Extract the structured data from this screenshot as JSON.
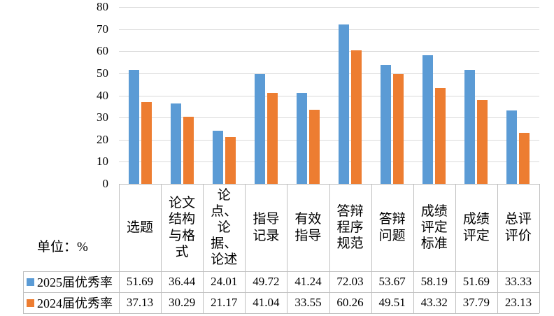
{
  "unit_label": "单位：%",
  "chart_data": {
    "type": "bar",
    "title": "",
    "xlabel": "",
    "ylabel": "单位：%",
    "categories": [
      "选题",
      "论文结构与格式",
      "论点、论据、论述",
      "指导记录",
      "有效指导",
      "答辩程序规范",
      "答辩问题",
      "成绩评定标准",
      "成绩评定",
      "总评评价"
    ],
    "category_label_lines": [
      "选题",
      "论文\n结构\n与格\n式",
      "论\n点、\n论\n据、\n论述",
      "指导\n记录",
      "有效\n指导",
      "答辩\n程序\n规范",
      "答辩\n问题",
      "成绩\n评定\n标准",
      "成绩\n评定",
      "总评\n评价"
    ],
    "series": [
      {
        "name": "2025届优秀率",
        "color": "#5B9BD5",
        "values": [
          51.69,
          36.44,
          24.01,
          49.72,
          41.24,
          72.03,
          53.67,
          58.19,
          51.69,
          33.33
        ]
      },
      {
        "name": "2024届优秀率",
        "color": "#ED7D31",
        "values": [
          37.13,
          30.29,
          21.17,
          41.04,
          33.55,
          60.26,
          49.51,
          43.32,
          37.79,
          23.13
        ]
      }
    ],
    "ylim": [
      0,
      80
    ],
    "yticks": [
      0,
      10,
      20,
      30,
      40,
      50,
      60,
      70,
      80
    ],
    "grid": true,
    "legend_position": "bottom-data-table",
    "gridline_color": "#D9D9D9",
    "border_color": "#BFBFBF",
    "background_color": "#FFFFFF"
  }
}
